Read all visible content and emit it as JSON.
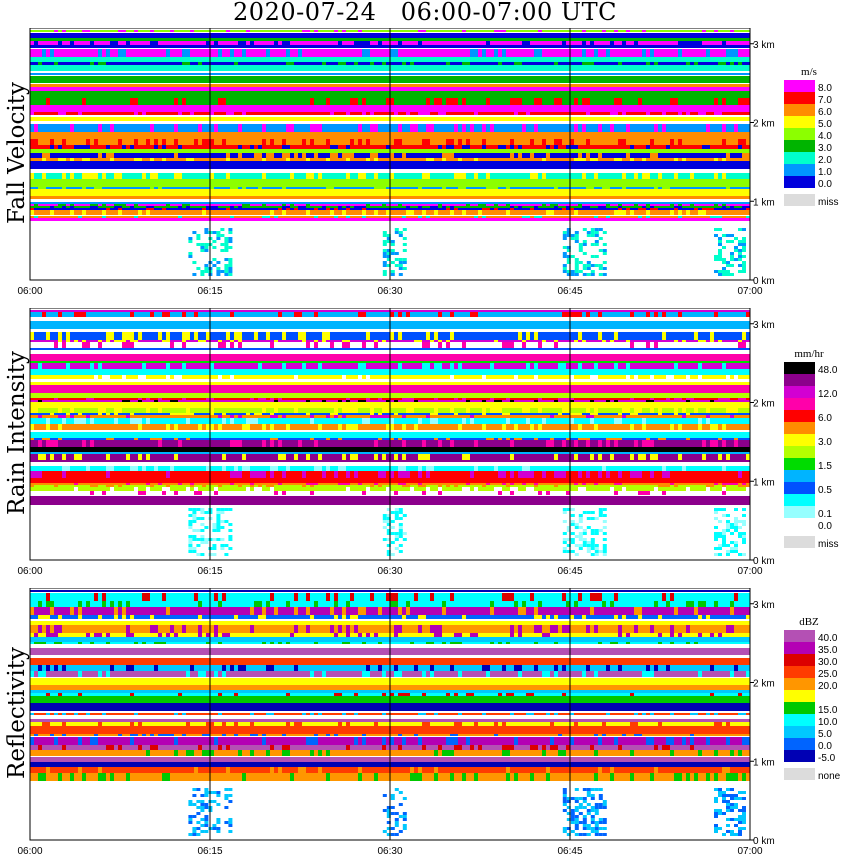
{
  "title": "2020-07-24   06:00-07:00 UTC",
  "chart_data": [
    {
      "type": "heatmap",
      "panel_label": "Fall Velocity",
      "x_ticks": [
        "06:00",
        "06:15",
        "06:30",
        "06:45",
        "07:00"
      ],
      "y_ticks": [
        "3 km",
        "2 km",
        "1 km",
        "0 km"
      ],
      "y_tick_values_km": [
        3,
        2,
        1,
        0
      ],
      "y_range_km": [
        0,
        3.2
      ],
      "legend_unit": "m/s",
      "legend": [
        {
          "label": "8.0",
          "color": "#ff00ff"
        },
        {
          "label": "7.0",
          "color": "#ff0000"
        },
        {
          "label": "6.0",
          "color": "#ff8c00"
        },
        {
          "label": "5.0",
          "color": "#ffff00"
        },
        {
          "label": "4.0",
          "color": "#8cff00"
        },
        {
          "label": "3.0",
          "color": "#00b400"
        },
        {
          "label": "2.0",
          "color": "#00ffcc"
        },
        {
          "label": "1.0",
          "color": "#0096ff"
        },
        {
          "label": "0.0",
          "color": "#0000dc"
        },
        {
          "label": "miss",
          "color": "#dcdcdc"
        }
      ]
    },
    {
      "type": "heatmap",
      "panel_label": "Rain Intensity",
      "x_ticks": [
        "06:00",
        "06:15",
        "06:30",
        "06:45",
        "07:00"
      ],
      "y_ticks": [
        "3 km",
        "2 km",
        "1 km",
        "0 km"
      ],
      "y_tick_values_km": [
        3,
        2,
        1,
        0
      ],
      "y_range_km": [
        0,
        3.2
      ],
      "legend_unit": "mm/hr",
      "legend": [
        {
          "label": "48.0",
          "color": "#000000"
        },
        {
          "label": "",
          "color": "#8c008c"
        },
        {
          "label": "12.0",
          "color": "#d200d2"
        },
        {
          "label": "",
          "color": "#ff00aa"
        },
        {
          "label": "6.0",
          "color": "#ff0000"
        },
        {
          "label": "",
          "color": "#ff8c00"
        },
        {
          "label": "3.0",
          "color": "#ffff00"
        },
        {
          "label": "",
          "color": "#b4ff00"
        },
        {
          "label": "1.5",
          "color": "#00dc00"
        },
        {
          "label": "",
          "color": "#00b4ff"
        },
        {
          "label": "0.5",
          "color": "#0050ff"
        },
        {
          "label": "",
          "color": "#00ffff"
        },
        {
          "label": "0.1",
          "color": "#96ffff"
        },
        {
          "label": "0.0",
          "color": "#ffffff"
        },
        {
          "label": "miss",
          "color": "#dcdcdc"
        }
      ]
    },
    {
      "type": "heatmap",
      "panel_label": "Reflectivity",
      "x_ticks": [
        "06:00",
        "06:15",
        "06:30",
        "06:45",
        "07:00"
      ],
      "y_ticks": [
        "3 km",
        "2 km",
        "1 km",
        "0 km"
      ],
      "y_tick_values_km": [
        3,
        2,
        1,
        0
      ],
      "y_range_km": [
        0,
        3.2
      ],
      "legend_unit": "dBZ",
      "legend": [
        {
          "label": "40.0",
          "color": "#b450b4"
        },
        {
          "label": "35.0",
          "color": "#b400b4"
        },
        {
          "label": "30.0",
          "color": "#dc0000"
        },
        {
          "label": "25.0",
          "color": "#ff3c00"
        },
        {
          "label": "20.0",
          "color": "#ff9600"
        },
        {
          "label": "",
          "color": "#ffff00"
        },
        {
          "label": "15.0",
          "color": "#00c800"
        },
        {
          "label": "10.0",
          "color": "#00ffff"
        },
        {
          "label": "5.0",
          "color": "#00c8ff"
        },
        {
          "label": "0.0",
          "color": "#0064ff"
        },
        {
          "label": "-5.0",
          "color": "#0000b4"
        },
        {
          "label": "none",
          "color": "#dcdcdc"
        }
      ]
    }
  ]
}
